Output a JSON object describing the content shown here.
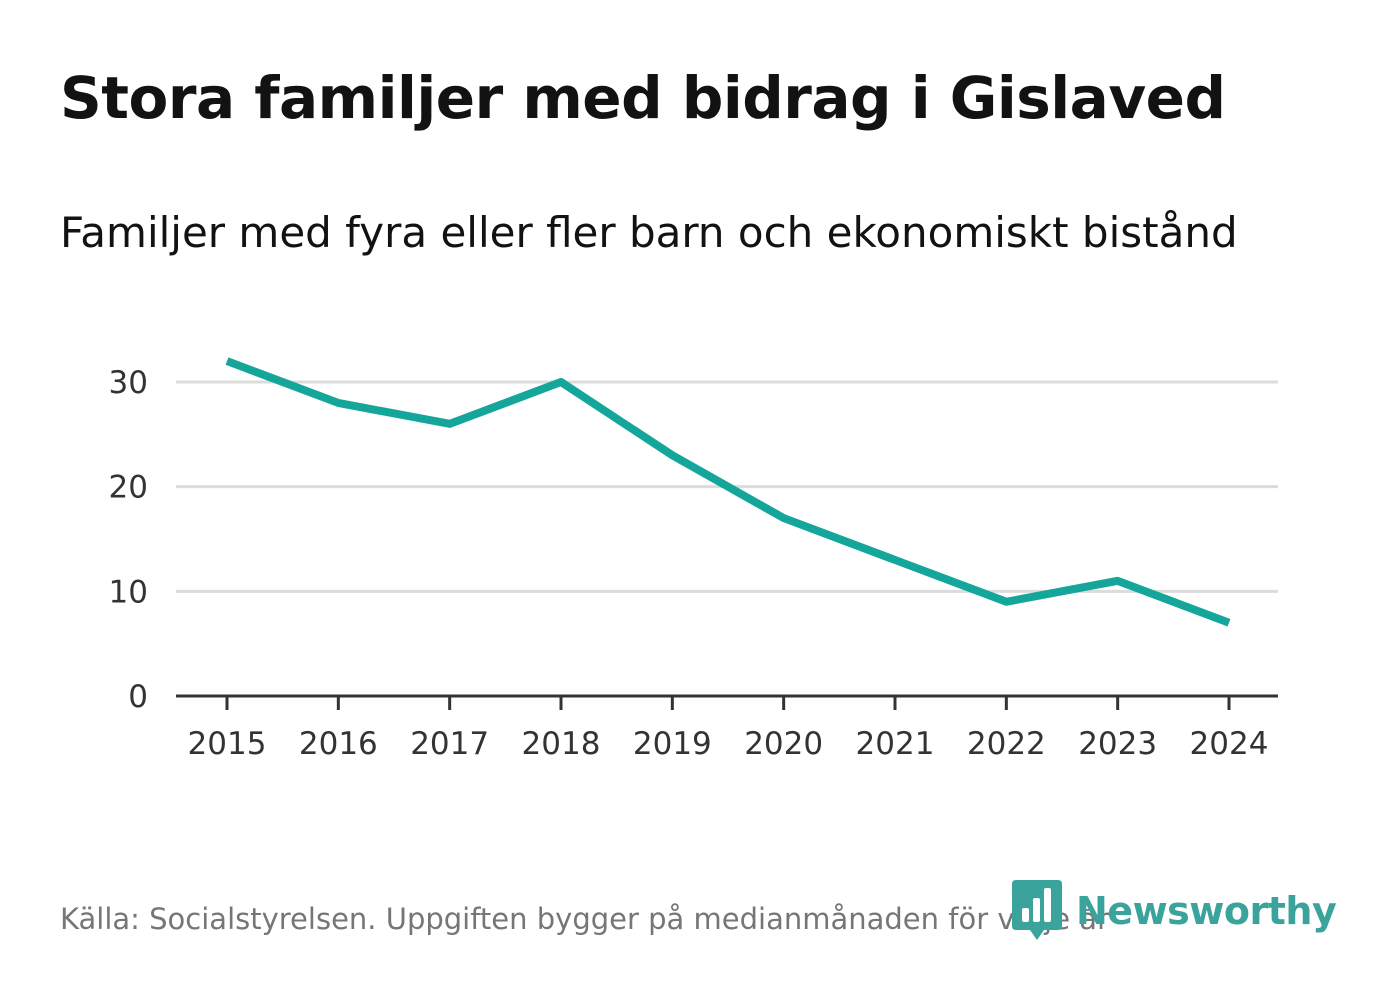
{
  "chart_data": {
    "type": "line",
    "title": "Stora familjer med bidrag i Gislaved",
    "subtitle": "Familjer med fyra eller fler barn och ekonomiskt bistånd",
    "categories": [
      "2015",
      "2016",
      "2017",
      "2018",
      "2019",
      "2020",
      "2021",
      "2022",
      "2023",
      "2024"
    ],
    "series": [
      {
        "name": "Familjer med fyra eller fler barn och ekonomiskt bistånd",
        "values": [
          32,
          28,
          26,
          30,
          23,
          17,
          13,
          9,
          11,
          7
        ],
        "color": "#14a69a"
      }
    ],
    "yticks": [
      0,
      10,
      20,
      30
    ],
    "ylim": [
      0,
      35
    ],
    "xlabel": "",
    "ylabel": "",
    "grid": true,
    "source": "Källa: Socialstyrelsen. Uppgiften bygger på medianmånaden för varje år"
  },
  "brand": {
    "name": "Newsworthy",
    "icon": "newsworthy-logo-icon",
    "color": "#3aa39b"
  },
  "colors": {
    "line": "#14a69a",
    "grid": "#dcdcdc",
    "axis": "#333333"
  }
}
